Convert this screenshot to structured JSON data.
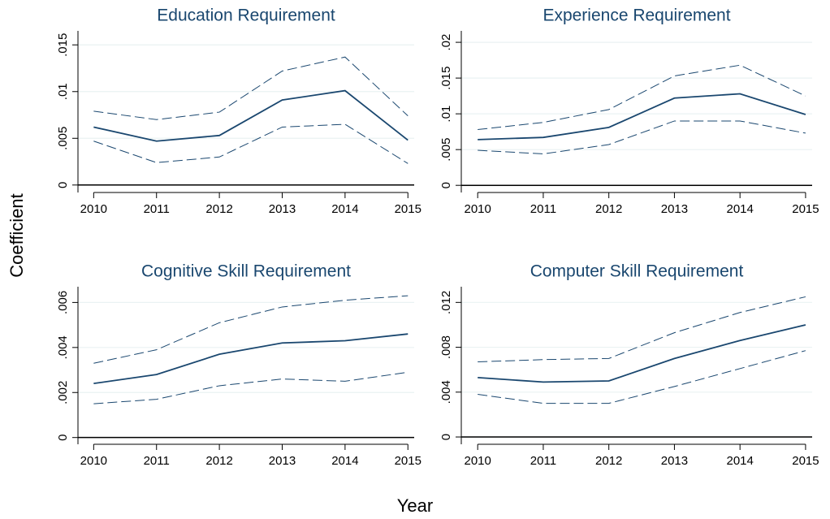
{
  "ylabel": "Coefficient",
  "xlabel": "Year",
  "chart_data": [
    {
      "type": "line",
      "title": "Education Requirement",
      "x": [
        2010,
        2011,
        2012,
        2013,
        2014,
        2015
      ],
      "series": [
        {
          "color": "#1a476f",
          "values": [
            0.0062,
            0.0047,
            0.0053,
            0.0091,
            0.0101,
            0.0048
          ]
        },
        {
          "color": "#1a476f",
          "dashed": true,
          "values": [
            0.0079,
            0.007,
            0.0078,
            0.0122,
            0.0137,
            0.0074
          ]
        },
        {
          "color": "#1a476f",
          "dashed": true,
          "values": [
            0.0047,
            0.0024,
            0.003,
            0.0062,
            0.0065,
            0.0023
          ]
        }
      ],
      "xlim": [
        2009.75,
        2015.1
      ],
      "xticks": [
        2010,
        2011,
        2012,
        2013,
        2014,
        2015
      ],
      "ylim": [
        -0.0008,
        0.0165
      ],
      "yticks": [
        0,
        {
          "value": 0.005,
          "label": ".005"
        },
        {
          "value": 0.01,
          "label": ".01"
        },
        {
          "value": 0.015,
          "label": ".015"
        }
      ],
      "grid": true,
      "hline": 0
    },
    {
      "type": "line",
      "title": "Experience Requirement",
      "x": [
        2010,
        2011,
        2012,
        2013,
        2014,
        2015
      ],
      "series": [
        {
          "color": "#1a476f",
          "values": [
            0.0064,
            0.0067,
            0.0081,
            0.0122,
            0.0128,
            0.0099
          ]
        },
        {
          "color": "#1a476f",
          "dashed": true,
          "values": [
            0.0078,
            0.0088,
            0.0106,
            0.0153,
            0.0168,
            0.0125
          ]
        },
        {
          "color": "#1a476f",
          "dashed": true,
          "values": [
            0.0049,
            0.0044,
            0.0057,
            0.009,
            0.009,
            0.0073
          ]
        }
      ],
      "xlim": [
        2009.75,
        2015.1
      ],
      "xticks": [
        2010,
        2011,
        2012,
        2013,
        2014,
        2015
      ],
      "ylim": [
        -0.001,
        0.0216
      ],
      "yticks": [
        0,
        {
          "value": 0.005,
          "label": ".005"
        },
        {
          "value": 0.01,
          "label": ".01"
        },
        {
          "value": 0.015,
          "label": ".015"
        },
        {
          "value": 0.02,
          "label": ".02"
        }
      ],
      "grid": true,
      "hline": 0
    },
    {
      "type": "line",
      "title": "Cognitive Skill Requirement",
      "x": [
        2010,
        2011,
        2012,
        2013,
        2014,
        2015
      ],
      "series": [
        {
          "color": "#1a476f",
          "values": [
            0.0024,
            0.0028,
            0.0037,
            0.0042,
            0.0043,
            0.0046
          ]
        },
        {
          "color": "#1a476f",
          "dashed": true,
          "values": [
            0.0033,
            0.0039,
            0.0051,
            0.0058,
            0.0061,
            0.0063
          ]
        },
        {
          "color": "#1a476f",
          "dashed": true,
          "values": [
            0.0015,
            0.0017,
            0.0023,
            0.0026,
            0.0025,
            0.0029
          ]
        }
      ],
      "xlim": [
        2009.75,
        2015.1
      ],
      "xticks": [
        2010,
        2011,
        2012,
        2013,
        2014,
        2015
      ],
      "ylim": [
        -0.0003,
        0.0067
      ],
      "yticks": [
        0,
        {
          "value": 0.002,
          "label": ".002"
        },
        {
          "value": 0.004,
          "label": ".004"
        },
        {
          "value": 0.006,
          "label": ".006"
        }
      ],
      "grid": true,
      "hline": 0
    },
    {
      "type": "line",
      "title": "Computer Skill Requirement",
      "x": [
        2010,
        2011,
        2012,
        2013,
        2014,
        2015
      ],
      "series": [
        {
          "color": "#1a476f",
          "values": [
            0.0053,
            0.0049,
            0.005,
            0.007,
            0.0086,
            0.01
          ]
        },
        {
          "color": "#1a476f",
          "dashed": true,
          "values": [
            0.0067,
            0.0069,
            0.007,
            0.0093,
            0.0111,
            0.0125
          ]
        },
        {
          "color": "#1a476f",
          "dashed": true,
          "values": [
            0.0038,
            0.003,
            0.003,
            0.0045,
            0.0061,
            0.0077
          ]
        }
      ],
      "xlim": [
        2009.75,
        2015.1
      ],
      "xticks": [
        2010,
        2011,
        2012,
        2013,
        2014,
        2015
      ],
      "ylim": [
        -0.00065,
        0.0134
      ],
      "yticks": [
        0,
        {
          "value": 0.004,
          "label": ".004"
        },
        {
          "value": 0.008,
          "label": ".008"
        },
        {
          "value": 0.012,
          "label": ".012"
        }
      ],
      "grid": true,
      "hline": 0
    }
  ]
}
